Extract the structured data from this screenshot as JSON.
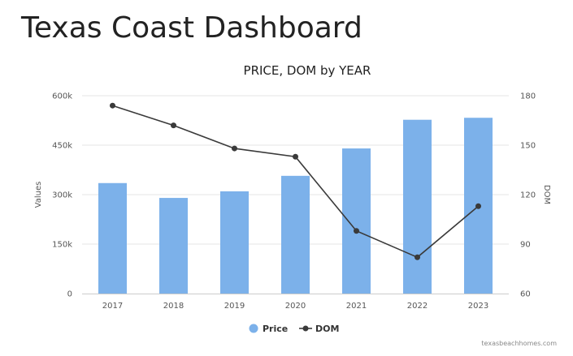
{
  "page": {
    "title": "Texas Coast Dashboard"
  },
  "colors": {
    "bar": "#7cb1ea",
    "line": "#3a3a3a",
    "grid": "#e6e6e6",
    "axis": "#cccccc"
  },
  "chart_data": {
    "type": "bar",
    "title": "PRICE, DOM by YEAR",
    "categories": [
      "2017",
      "2018",
      "2019",
      "2020",
      "2021",
      "2022",
      "2023"
    ],
    "series": [
      {
        "name": "Price",
        "type": "bar",
        "axis": "left",
        "values": [
          335000,
          290000,
          310000,
          357000,
          440000,
          527000,
          533000
        ]
      },
      {
        "name": "DOM",
        "type": "line",
        "axis": "right",
        "values": [
          174,
          162,
          148,
          143,
          98,
          82,
          113
        ]
      }
    ],
    "ylabel": "Values",
    "ylabel_right": "DOM",
    "ylim": [
      0,
      600000
    ],
    "ylim_right": [
      60,
      180
    ],
    "yticks": [
      "0",
      "150k",
      "300k",
      "450k",
      "600k"
    ],
    "yticks_right": [
      "60",
      "90",
      "120",
      "150",
      "180"
    ],
    "grid": true,
    "legend": "bottom-center",
    "credits": "texasbeachhomes.com"
  }
}
